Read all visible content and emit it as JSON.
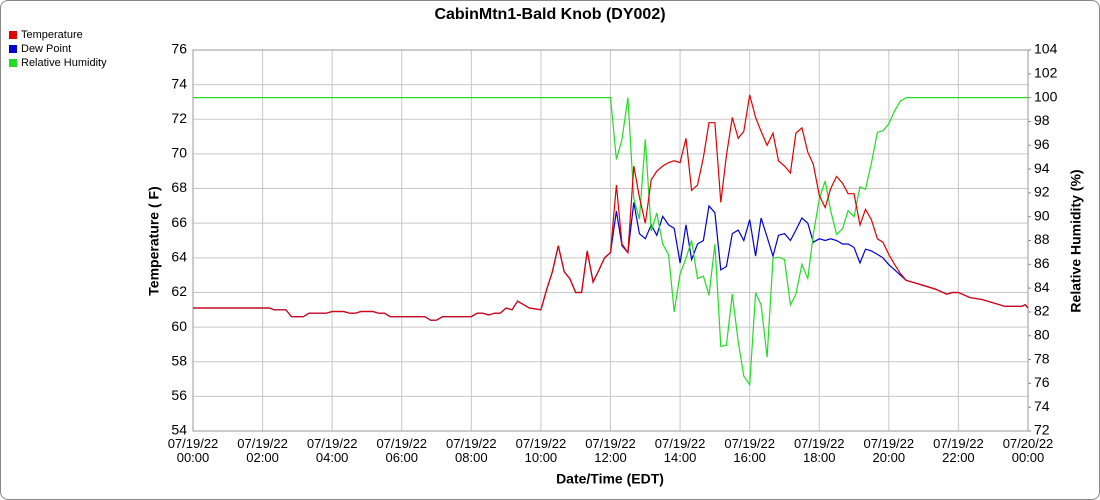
{
  "chart_data": {
    "type": "line",
    "title": "CabinMtn1-Bald Knob (DY002)",
    "xlabel": "Date/Time (EDT)",
    "ylabel": "Temperature ( F)",
    "y2label": "Relative Humidity (%)",
    "grid": true,
    "legend": "top-left",
    "xlim": [
      0,
      24
    ],
    "xticks": [
      {
        "value": 0,
        "label": "07/19/22 00:00"
      },
      {
        "value": 2,
        "label": "07/19/22 02:00"
      },
      {
        "value": 4,
        "label": "07/19/22 04:00"
      },
      {
        "value": 6,
        "label": "07/19/22 06:00"
      },
      {
        "value": 8,
        "label": "07/19/22 08:00"
      },
      {
        "value": 10,
        "label": "07/19/22 10:00"
      },
      {
        "value": 12,
        "label": "07/19/22 12:00"
      },
      {
        "value": 14,
        "label": "07/19/22 14:00"
      },
      {
        "value": 16,
        "label": "07/19/22 16:00"
      },
      {
        "value": 18,
        "label": "07/19/22 18:00"
      },
      {
        "value": 20,
        "label": "07/19/22 20:00"
      },
      {
        "value": 22,
        "label": "07/19/22 22:00"
      },
      {
        "value": 24,
        "label": "07/20/22 00:00"
      }
    ],
    "ylim": [
      54,
      76
    ],
    "yticks": [
      54,
      56,
      58,
      60,
      62,
      64,
      66,
      68,
      70,
      72,
      74,
      76
    ],
    "y2lim": [
      72,
      104
    ],
    "y2ticks": [
      72,
      74,
      76,
      78,
      80,
      82,
      84,
      86,
      88,
      90,
      92,
      94,
      96,
      98,
      100,
      102,
      104
    ],
    "x": [
      0,
      2.2,
      2.33,
      2.67,
      2.83,
      3.17,
      3.33,
      3.83,
      4.0,
      4.33,
      4.5,
      4.67,
      4.83,
      5.17,
      5.33,
      5.5,
      5.67,
      6.67,
      6.83,
      7.0,
      7.17,
      8.0,
      8.17,
      8.33,
      8.5,
      8.67,
      8.83,
      9.0,
      9.17,
      9.33,
      9.5,
      9.67,
      10.0,
      10.17,
      10.33,
      10.5,
      10.67,
      10.83,
      11.0,
      11.17,
      11.33,
      11.5,
      11.67,
      11.83,
      12.0,
      12.17,
      12.33,
      12.5,
      12.67,
      12.83,
      13.0,
      13.17,
      13.33,
      13.5,
      13.67,
      13.83,
      14.0,
      14.17,
      14.33,
      14.5,
      14.67,
      14.83,
      15.0,
      15.17,
      15.33,
      15.5,
      15.67,
      15.83,
      16.0,
      16.17,
      16.33,
      16.5,
      16.67,
      16.83,
      17.0,
      17.17,
      17.33,
      17.5,
      17.67,
      17.83,
      18.0,
      18.17,
      18.33,
      18.5,
      18.67,
      18.83,
      19.0,
      19.17,
      19.33,
      19.5,
      19.67,
      19.83,
      20.0,
      20.17,
      20.33,
      20.5,
      20.67,
      21.0,
      21.33,
      21.67,
      21.83,
      22.0,
      22.33,
      22.67,
      23.0,
      23.33,
      23.83,
      23.92,
      24.0
    ],
    "series": [
      {
        "name": "Temperature",
        "color": "#e00000",
        "values": [
          61.1,
          61.1,
          61.0,
          61.0,
          60.6,
          60.6,
          60.8,
          60.8,
          60.9,
          60.9,
          60.8,
          60.8,
          60.9,
          60.9,
          60.8,
          60.8,
          60.6,
          60.6,
          60.4,
          60.4,
          60.6,
          60.6,
          60.8,
          60.8,
          60.7,
          60.8,
          60.8,
          61.1,
          61.0,
          61.5,
          61.3,
          61.1,
          61.0,
          62.2,
          63.2,
          64.7,
          63.2,
          62.8,
          62.0,
          62.0,
          64.4,
          62.6,
          63.3,
          64.0,
          64.3,
          68.2,
          64.8,
          64.3,
          69.3,
          67.5,
          66.0,
          68.5,
          69.0,
          69.3,
          69.5,
          69.6,
          69.5,
          70.9,
          67.9,
          68.2,
          69.8,
          71.8,
          71.8,
          67.2,
          69.9,
          72.1,
          70.9,
          71.3,
          73.4,
          72.1,
          71.3,
          70.5,
          71.2,
          69.6,
          69.3,
          68.9,
          71.2,
          71.5,
          70.1,
          69.4,
          67.6,
          66.9,
          68.0,
          68.7,
          68.3,
          67.7,
          67.7,
          65.9,
          66.8,
          66.2,
          65.1,
          64.9,
          64.2,
          63.6,
          63.1,
          62.7,
          62.6,
          62.4,
          62.2,
          61.9,
          62.0,
          62.0,
          61.7,
          61.6,
          61.4,
          61.2,
          61.2,
          61.3,
          61.1
        ]
      },
      {
        "name": "Dew Point",
        "color": "#0000d0",
        "values": [
          61.1,
          61.1,
          61.0,
          61.0,
          60.6,
          60.6,
          60.8,
          60.8,
          60.9,
          60.9,
          60.8,
          60.8,
          60.9,
          60.9,
          60.8,
          60.8,
          60.6,
          60.6,
          60.4,
          60.4,
          60.6,
          60.6,
          60.8,
          60.8,
          60.7,
          60.8,
          60.8,
          61.1,
          61.0,
          61.5,
          61.3,
          61.1,
          61.0,
          62.2,
          63.2,
          64.7,
          63.2,
          62.8,
          62.0,
          62.0,
          64.4,
          62.6,
          63.3,
          64.0,
          64.3,
          66.7,
          64.7,
          64.3,
          67.2,
          65.4,
          65.1,
          65.9,
          65.3,
          66.4,
          65.9,
          65.7,
          63.7,
          65.9,
          63.9,
          64.8,
          65.0,
          67.0,
          66.6,
          63.3,
          63.5,
          65.4,
          65.6,
          65.0,
          66.2,
          64.1,
          66.3,
          65.2,
          64.1,
          65.3,
          65.4,
          65.0,
          65.6,
          66.3,
          66.0,
          64.9,
          65.1,
          65.0,
          65.1,
          65.0,
          64.8,
          64.8,
          64.6,
          63.7,
          64.5,
          64.4,
          64.2,
          64.0,
          63.6,
          63.3,
          63.0,
          62.7,
          62.6,
          62.4,
          62.2,
          61.9,
          62.0,
          62.0,
          61.7,
          61.6,
          61.4,
          61.2,
          61.2,
          61.3,
          61.1
        ]
      },
      {
        "name": "Relative Humidity",
        "color": "#22dd22",
        "axis": "y2",
        "values": [
          100,
          100,
          100,
          100,
          100,
          100,
          100,
          100,
          100,
          100,
          100,
          100,
          100,
          100,
          100,
          100,
          100,
          100,
          100,
          100,
          100,
          100,
          100,
          100,
          100,
          100,
          100,
          100,
          100,
          100,
          100,
          100,
          100,
          100,
          100,
          100,
          100,
          100,
          100,
          100,
          100,
          100,
          100,
          100,
          100,
          94.8,
          96.5,
          100,
          91.5,
          89.8,
          96.5,
          88.8,
          90.3,
          87.7,
          86.8,
          82.0,
          85.2,
          86.5,
          88.0,
          84.8,
          85.0,
          83.4,
          87.7,
          79.1,
          79.2,
          83.5,
          79.5,
          76.6,
          75.9,
          83.6,
          82.6,
          78.2,
          86.5,
          86.6,
          86.4,
          82.6,
          83.5,
          86.0,
          84.8,
          88.5,
          91.5,
          93.0,
          90.5,
          88.5,
          89.0,
          90.5,
          90.0,
          92.5,
          92.3,
          94.5,
          97.1,
          97.2,
          97.8,
          98.9,
          99.7,
          100,
          100,
          100,
          100,
          100,
          100,
          100,
          100,
          100,
          100,
          100,
          100,
          100,
          100
        ]
      }
    ]
  }
}
